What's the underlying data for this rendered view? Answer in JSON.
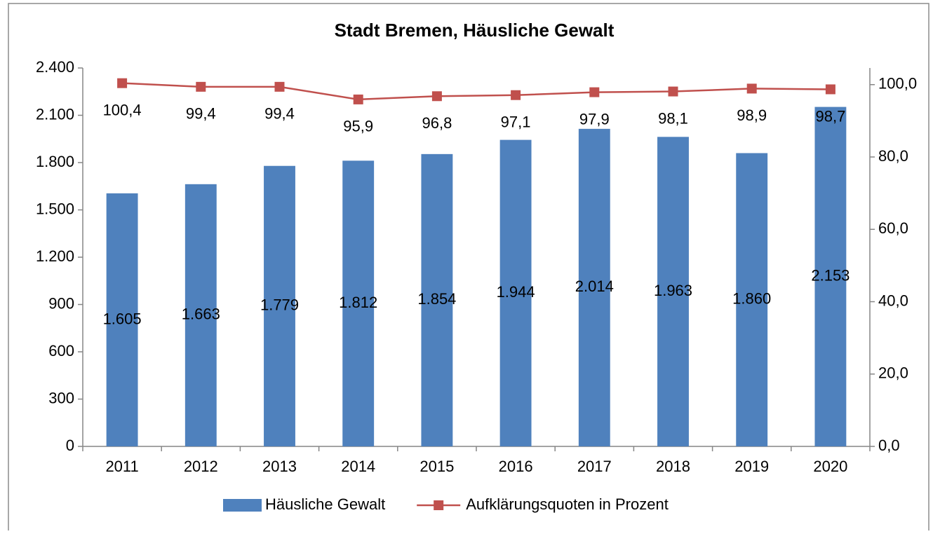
{
  "chart_data": {
    "type": "bar",
    "title": "Stadt Bremen, Häusliche Gewalt",
    "categories": [
      "2011",
      "2012",
      "2013",
      "2014",
      "2015",
      "2016",
      "2017",
      "2018",
      "2019",
      "2020"
    ],
    "series": [
      {
        "name": "Häusliche Gewalt",
        "type": "bar",
        "color": "#4f81bd",
        "values": [
          1605,
          1663,
          1779,
          1812,
          1854,
          1944,
          2014,
          1963,
          1860,
          2153
        ],
        "value_labels": [
          "1.605",
          "1.663",
          "1.779",
          "1.812",
          "1.854",
          "1.944",
          "2.014",
          "1.963",
          "1.860",
          "2.153"
        ]
      },
      {
        "name": "Aufklärungsquoten in Prozent",
        "type": "line",
        "axis": "y2",
        "color": "#c0504d",
        "values": [
          100.4,
          99.4,
          99.4,
          95.9,
          96.8,
          97.1,
          97.9,
          98.1,
          98.9,
          98.7
        ],
        "value_labels": [
          "100,4",
          "99,4",
          "99,4",
          "95,9",
          "96,8",
          "97,1",
          "97,9",
          "98,1",
          "98,9",
          "98,7"
        ]
      }
    ],
    "ylim": [
      0,
      2400
    ],
    "yticks": [
      0,
      300,
      600,
      900,
      {
        "value": 1200,
        "label": "1.200"
      },
      {
        "value": 1500,
        "label": "1.500"
      },
      {
        "value": 1800,
        "label": "1.800"
      },
      {
        "value": 2100,
        "label": "2.100"
      },
      {
        "value": 2400,
        "label": "2.400"
      }
    ],
    "y2lim": [
      0,
      104.6
    ],
    "y2ticks": [
      {
        "value": 0,
        "label": "0,0"
      },
      {
        "value": 20,
        "label": "20,0"
      },
      {
        "value": 40,
        "label": "40,0"
      },
      {
        "value": 60,
        "label": "60,0"
      },
      {
        "value": 80,
        "label": "80,0"
      },
      {
        "value": 100,
        "label": "100,0"
      }
    ],
    "grid": false,
    "legend": "bottom"
  }
}
